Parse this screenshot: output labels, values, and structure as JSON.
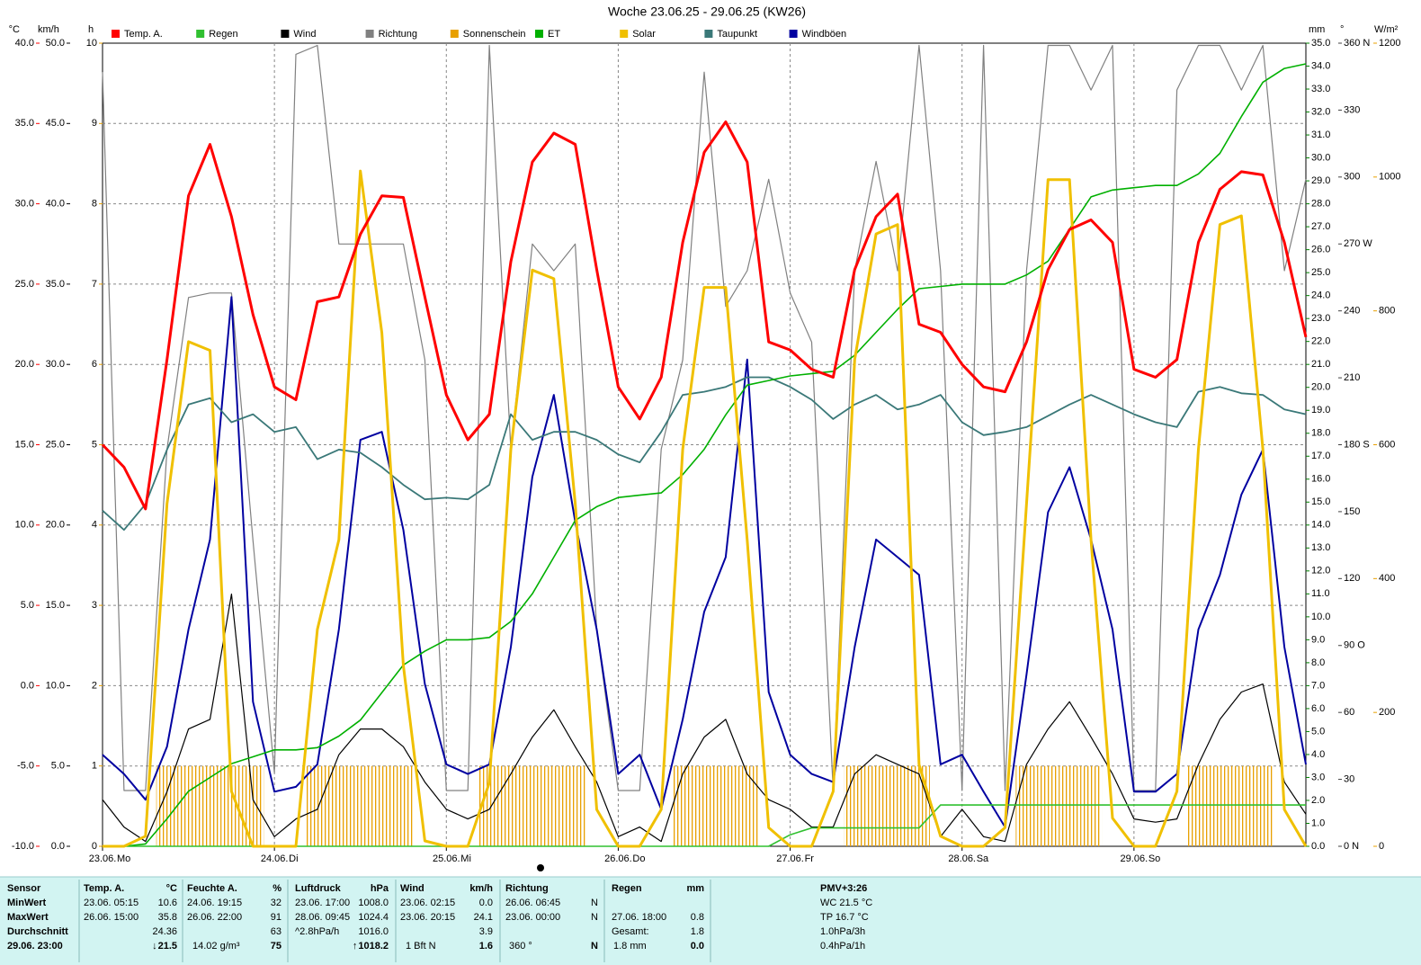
{
  "chart_data": {
    "type": "line",
    "title": "Woche 23.06.25 - 29.06.25 (KW26)",
    "x": [
      0,
      3,
      6,
      9,
      12,
      15,
      18,
      21,
      24,
      27,
      30,
      33,
      36,
      39,
      42,
      45,
      48,
      51,
      54,
      57,
      60,
      63,
      66,
      69,
      72,
      75,
      78,
      81,
      84,
      87,
      90,
      93,
      96,
      99,
      102,
      105,
      108,
      111,
      114,
      117,
      120,
      123,
      126,
      129,
      132,
      135,
      138,
      141,
      144,
      147,
      150,
      153,
      156,
      159,
      162,
      165,
      168
    ],
    "xlim": [
      0,
      168
    ],
    "xticks": [
      {
        "value": 0,
        "label": "23.06."
      },
      {
        "value": 24,
        "label": "24.06."
      },
      {
        "value": 48,
        "label": "25.06."
      },
      {
        "value": 72,
        "label": "26.06."
      },
      {
        "value": 96,
        "label": "27.06."
      },
      {
        "value": 120,
        "label": "28.06."
      },
      {
        "value": 144,
        "label": "29.06."
      }
    ],
    "xtick_days": [
      "Mo",
      "Di",
      "Mi",
      "Do",
      "Fr",
      "Sa",
      "So"
    ],
    "grid": true,
    "ylabel": "°C",
    "ylim": [
      -10,
      40
    ],
    "yticks": [
      {
        "value": -10,
        "label": "-10.0"
      },
      {
        "value": -5,
        "label": "-5.0"
      },
      {
        "value": 0,
        "label": "0.0"
      },
      {
        "value": 5,
        "label": "5.0"
      },
      {
        "value": 10,
        "label": "10.0"
      },
      {
        "value": 15,
        "label": "15.0"
      },
      {
        "value": 20,
        "label": "20.0"
      },
      {
        "value": 25,
        "label": "25.0"
      },
      {
        "value": 30,
        "label": "30.0"
      },
      {
        "value": 35,
        "label": "35.0"
      },
      {
        "value": 40,
        "label": "40.0"
      }
    ],
    "y2label": "km/h",
    "y2lim": [
      0,
      50
    ],
    "y2ticks": [
      {
        "value": 0,
        "label": "0.0"
      },
      {
        "value": 5,
        "label": "5.0"
      },
      {
        "value": 10,
        "label": "10.0"
      },
      {
        "value": 15,
        "label": "15.0"
      },
      {
        "value": 20,
        "label": "20.0"
      },
      {
        "value": 25,
        "label": "25.0"
      },
      {
        "value": 30,
        "label": "30.0"
      },
      {
        "value": 35,
        "label": "35.0"
      },
      {
        "value": 40,
        "label": "40.0"
      },
      {
        "value": 45,
        "label": "45.0"
      },
      {
        "value": 50,
        "label": "50.0"
      }
    ],
    "y3label": "h",
    "y3lim": [
      0,
      10
    ],
    "y3ticks": [
      0,
      1,
      2,
      3,
      4,
      5,
      6,
      7,
      8,
      9,
      10
    ],
    "y4label": "mm",
    "y4lim": [
      0,
      35
    ],
    "y4ticks": [
      {
        "value": 0,
        "label": "0.0"
      },
      {
        "value": 1,
        "label": "1.0"
      },
      {
        "value": 2,
        "label": "2.0"
      },
      {
        "value": 3,
        "label": "3.0"
      },
      {
        "value": 4,
        "label": "4.0"
      },
      {
        "value": 5,
        "label": "5.0"
      },
      {
        "value": 6,
        "label": "6.0"
      },
      {
        "value": 7,
        "label": "7.0"
      },
      {
        "value": 8,
        "label": "8.0"
      },
      {
        "value": 9,
        "label": "9.0"
      },
      {
        "value": 10,
        "label": "10.0"
      },
      {
        "value": 11,
        "label": "11.0"
      },
      {
        "value": 12,
        "label": "12.0"
      },
      {
        "value": 13,
        "label": "13.0"
      },
      {
        "value": 14,
        "label": "14.0"
      },
      {
        "value": 15,
        "label": "15.0"
      },
      {
        "value": 16,
        "label": "16.0"
      },
      {
        "value": 17,
        "label": "17.0"
      },
      {
        "value": 18,
        "label": "18.0"
      },
      {
        "value": 19,
        "label": "19.0"
      },
      {
        "value": 20,
        "label": "20.0"
      },
      {
        "value": 21,
        "label": "21.0"
      },
      {
        "value": 22,
        "label": "22.0"
      },
      {
        "value": 23,
        "label": "23.0"
      },
      {
        "value": 24,
        "label": "24.0"
      },
      {
        "value": 25,
        "label": "25.0"
      },
      {
        "value": 26,
        "label": "26.0"
      },
      {
        "value": 27,
        "label": "27.0"
      },
      {
        "value": 28,
        "label": "28.0"
      },
      {
        "value": 29,
        "label": "29.0"
      },
      {
        "value": 30,
        "label": "30.0"
      },
      {
        "value": 31,
        "label": "31.0"
      },
      {
        "value": 32,
        "label": "32.0"
      },
      {
        "value": 33,
        "label": "33.0"
      },
      {
        "value": 34,
        "label": "34.0"
      },
      {
        "value": 35,
        "label": "35.0"
      }
    ],
    "y5label": "°",
    "y5lim": [
      0,
      360
    ],
    "y5ticks": [
      {
        "value": 0,
        "label": "0 N"
      },
      30,
      60,
      {
        "value": 90,
        "label": "90 O"
      },
      120,
      150,
      {
        "value": 180,
        "label": "180 S"
      },
      210,
      240,
      {
        "value": 270,
        "label": "270 W"
      },
      300,
      330,
      {
        "value": 360,
        "label": "360 N"
      }
    ],
    "y6label": "W/m²",
    "y6lim": [
      0,
      1200
    ],
    "y6ticks": [
      0,
      200,
      400,
      600,
      800,
      1000,
      1200
    ],
    "series": [
      {
        "name": "Temp. A.",
        "color": "#ff0000",
        "axis": "y",
        "values": [
          15.0,
          13.6,
          11.0,
          20.3,
          30.5,
          33.7,
          29.2,
          23.1,
          18.6,
          17.8,
          23.9,
          24.2,
          28.1,
          30.5,
          30.4,
          24.2,
          18.1,
          15.3,
          16.9,
          26.4,
          32.6,
          34.4,
          33.7,
          25.9,
          18.6,
          16.6,
          19.2,
          27.6,
          33.2,
          35.1,
          32.6,
          21.4,
          20.9,
          19.7,
          19.2,
          25.9,
          29.2,
          30.6,
          22.5,
          22.0,
          20.0,
          18.6,
          18.3,
          21.4,
          25.9,
          28.4,
          29.0,
          27.6,
          19.7,
          19.2,
          20.3,
          27.6,
          30.9,
          32.0,
          31.8,
          27.6,
          21.7
        ]
      },
      {
        "name": "Regen",
        "color": "#30c030",
        "axis": "y4",
        "values": [
          0,
          0,
          0,
          0,
          0,
          0,
          0,
          0,
          0,
          0,
          0,
          0,
          0,
          0,
          0,
          0,
          0,
          0,
          0,
          0,
          0,
          0,
          0,
          0,
          0,
          0,
          0,
          0,
          0,
          0,
          0,
          0,
          0.5,
          0.8,
          0.8,
          0.8,
          0.8,
          0.8,
          0.8,
          1.8,
          1.8,
          1.8,
          1.8,
          1.8,
          1.8,
          1.8,
          1.8,
          1.8,
          1.8,
          1.8,
          1.8,
          1.8,
          1.8,
          1.8,
          1.8,
          1.8,
          1.8
        ]
      },
      {
        "name": "Wind",
        "color": "#000000",
        "axis": "y2",
        "values": [
          2.9,
          1.2,
          0.3,
          3.4,
          7.3,
          7.9,
          15.7,
          2.9,
          0.6,
          1.7,
          2.3,
          5.7,
          7.3,
          7.3,
          6.2,
          4.0,
          2.3,
          1.7,
          2.3,
          4.5,
          6.8,
          8.5,
          6.2,
          4.0,
          0.6,
          1.2,
          0.3,
          4.5,
          6.8,
          7.9,
          4.5,
          2.9,
          2.3,
          1.2,
          1.2,
          4.5,
          5.7,
          5.1,
          4.5,
          0.6,
          2.3,
          0.6,
          0.3,
          5.1,
          7.3,
          9.0,
          6.8,
          4.5,
          1.7,
          1.5,
          1.7,
          5.1,
          7.9,
          9.6,
          10.1,
          4.0,
          2.0
        ]
      },
      {
        "name": "Richtung",
        "color": "#808080",
        "axis": "y5",
        "values": [
          347,
          25,
          25,
          178,
          246,
          248,
          248,
          137,
          33,
          355,
          359,
          270,
          270,
          270,
          270,
          218,
          25,
          25,
          359,
          178,
          270,
          258,
          270,
          97,
          25,
          25,
          178,
          218,
          347,
          242,
          258,
          299,
          248,
          226,
          25,
          258,
          307,
          258,
          359,
          258,
          25,
          359,
          25,
          258,
          359,
          359,
          339,
          359,
          25,
          25,
          339,
          359,
          359,
          339,
          359,
          258,
          299
        ]
      },
      {
        "name": "Sonnenschein",
        "color": "#e8a000",
        "axis": "y3",
        "style": "bar",
        "values": [
          0,
          0,
          0,
          1,
          1,
          1,
          1,
          1,
          0,
          0,
          1,
          1,
          1,
          1,
          1,
          0,
          0,
          0,
          1,
          1,
          1,
          1,
          1,
          0,
          0,
          0,
          0,
          1,
          1,
          1,
          1,
          0,
          0,
          0,
          0,
          1,
          1,
          1,
          1,
          0,
          0,
          0,
          0,
          1,
          1,
          1,
          1,
          0,
          0,
          0,
          0,
          1,
          1,
          1,
          1,
          0,
          0
        ]
      },
      {
        "name": "ET",
        "color": "#00b000",
        "axis": "y4",
        "values": [
          0.0,
          0.0,
          0.1,
          1.2,
          2.4,
          3.0,
          3.6,
          3.9,
          4.2,
          4.2,
          4.3,
          4.8,
          5.5,
          6.7,
          7.9,
          8.5,
          9.0,
          9.0,
          9.1,
          9.8,
          11.0,
          12.6,
          14.2,
          14.8,
          15.2,
          15.3,
          15.4,
          16.2,
          17.3,
          18.8,
          20.1,
          20.3,
          20.5,
          20.6,
          20.7,
          21.4,
          22.4,
          23.4,
          24.3,
          24.4,
          24.5,
          24.5,
          24.5,
          24.9,
          25.5,
          26.9,
          28.3,
          28.6,
          28.7,
          28.8,
          28.8,
          29.3,
          30.2,
          31.8,
          33.3,
          33.9,
          34.1
        ]
      },
      {
        "name": "Solar",
        "color": "#f0c000",
        "axis": "y6",
        "values": [
          0,
          0,
          15,
          512,
          754,
          741,
          82,
          0,
          0,
          0,
          324,
          458,
          1009,
          767,
          270,
          8,
          0,
          0,
          95,
          593,
          861,
          848,
          512,
          55,
          0,
          0,
          55,
          593,
          835,
          835,
          458,
          28,
          0,
          0,
          82,
          727,
          915,
          929,
          122,
          15,
          0,
          0,
          28,
          512,
          996,
          996,
          458,
          42,
          0,
          0,
          82,
          593,
          929,
          942,
          593,
          55,
          0
        ]
      },
      {
        "name": "Taupunkt",
        "color": "#3a7878",
        "axis": "y",
        "values": [
          10.9,
          9.7,
          11.3,
          14.7,
          17.5,
          17.9,
          16.4,
          16.9,
          15.8,
          16.1,
          14.1,
          14.7,
          14.5,
          13.6,
          12.5,
          11.6,
          11.7,
          11.6,
          12.5,
          16.9,
          15.3,
          15.8,
          15.8,
          15.3,
          14.4,
          13.9,
          15.8,
          18.1,
          18.3,
          18.6,
          19.2,
          19.2,
          18.6,
          17.8,
          16.6,
          17.5,
          18.1,
          17.2,
          17.5,
          18.1,
          16.4,
          15.6,
          15.8,
          16.1,
          16.8,
          17.5,
          18.1,
          17.5,
          16.9,
          16.4,
          16.1,
          18.3,
          18.6,
          18.2,
          18.1,
          17.2,
          16.9
        ]
      },
      {
        "name": "Windböen",
        "color": "#0000a0",
        "axis": "y2",
        "values": [
          5.7,
          4.5,
          2.9,
          6.2,
          13.5,
          19.1,
          34.2,
          9.0,
          3.4,
          3.7,
          5.1,
          13.5,
          25.3,
          25.8,
          19.7,
          10.1,
          5.1,
          4.5,
          5.1,
          12.4,
          23.0,
          28.1,
          20.2,
          13.5,
          4.5,
          5.7,
          2.3,
          7.9,
          14.6,
          18.0,
          30.3,
          9.6,
          5.7,
          4.5,
          4.0,
          12.4,
          19.1,
          18.0,
          16.9,
          5.1,
          5.7,
          3.4,
          1.2,
          10.7,
          20.8,
          23.6,
          19.1,
          13.5,
          3.4,
          3.4,
          4.5,
          13.5,
          16.9,
          21.9,
          24.7,
          12.4,
          5.1
        ]
      }
    ]
  },
  "stats": {
    "row_labels": [
      "Sensor",
      "MinWert",
      "MaxWert",
      "Durchschnitt",
      "29.06. 23:00"
    ],
    "temp": {
      "header": "Temp. A.",
      "unit": "°C",
      "min_time": "23.06. 05:15",
      "min": "10.6",
      "max_time": "26.06. 15:00",
      "max": "35.8",
      "avg": "24.36",
      "cur_trend": "↓",
      "cur": "21.5"
    },
    "humid": {
      "header": "Feuchte A.",
      "unit": "%",
      "min_time": "24.06. 19:15",
      "min": "32",
      "max_time": "26.06. 22:00",
      "max": "91",
      "avg": "63",
      "cur_note": "14.02 g/m³",
      "cur": "75"
    },
    "press": {
      "header": "Luftdruck",
      "unit": "hPa",
      "min_time": "23.06. 17:00",
      "min": "1008.0",
      "max_time": "28.06. 09:45",
      "max": "1024.4",
      "avg_note": "^2.8hPa/h",
      "avg": "1016.0",
      "cur_trend": "↑",
      "cur": "1018.2"
    },
    "wind": {
      "header": "Wind",
      "unit": "km/h",
      "min_time": "23.06. 02:15",
      "min": "0.0",
      "max_time": "23.06. 20:15",
      "max": "24.1",
      "avg": "3.9",
      "cur_note": "1 Bft N",
      "cur": "1.6"
    },
    "dir": {
      "header": "Richtung",
      "min_time": "26.06. 06:45",
      "min": "N",
      "max_time": "23.06. 00:00",
      "max": "N",
      "cur_note": "360 °",
      "cur": "N"
    },
    "rain": {
      "header": "Regen",
      "unit": "mm",
      "max_time": "27.06. 18:00",
      "max": "0.8",
      "avg_note": "Gesamt:",
      "avg": "1.8",
      "cur_note": "1.8 mm",
      "cur": "0.0"
    },
    "pmv": [
      "PMV+3:26",
      "WC 21.5 °C",
      "TP 16.7 °C",
      "1.0hPa/3h",
      "0.4hPa/1h"
    ]
  }
}
